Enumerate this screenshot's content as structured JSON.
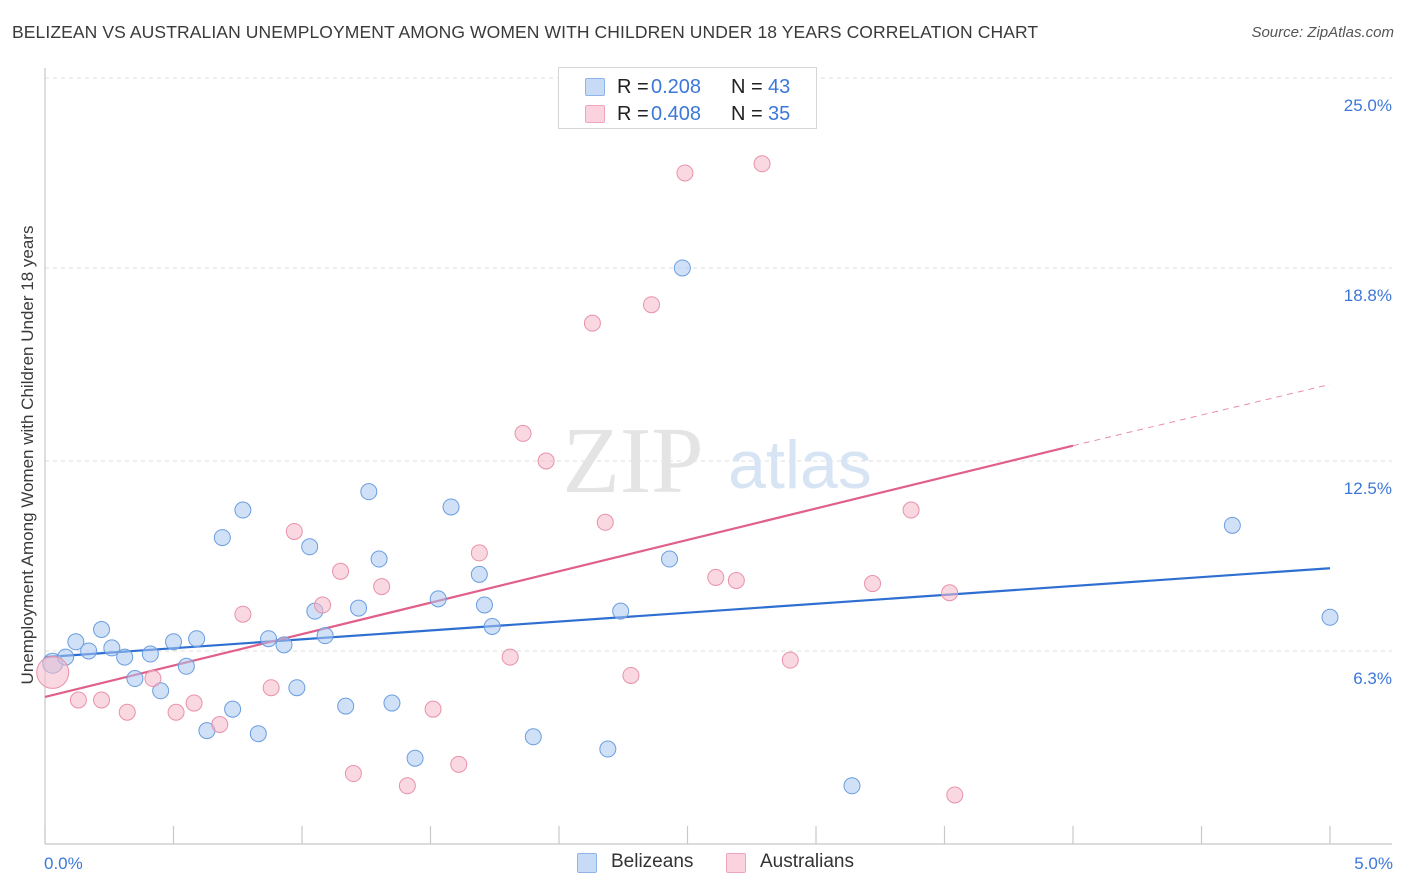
{
  "header": {
    "title": "BELIZEAN VS AUSTRALIAN UNEMPLOYMENT AMONG WOMEN WITH CHILDREN UNDER 18 YEARS CORRELATION CHART",
    "source": "Source: ZipAtlas.com"
  },
  "watermark": {
    "zip": "ZIP",
    "atlas": "atlas"
  },
  "legend_top": {
    "rows": [
      {
        "r_label": "R =",
        "r_value": "0.208",
        "n_label": "N =",
        "n_value": "43",
        "color": "#a9c7f0"
      },
      {
        "r_label": "R =",
        "r_value": "0.408",
        "n_label": "N =",
        "n_value": "35",
        "color": "#f5b8c8"
      }
    ]
  },
  "legend_bottom": {
    "items": [
      {
        "label": "Belizeans",
        "color": "#a9c7f0"
      },
      {
        "label": "Australians",
        "color": "#f5b8c8"
      }
    ]
  },
  "chart_data": {
    "type": "scatter",
    "title": "BELIZEAN VS AUSTRALIAN UNEMPLOYMENT AMONG WOMEN WITH CHILDREN UNDER 18 YEARS CORRELATION CHART",
    "xlabel": "",
    "ylabel": "Unemployment Among Women with Children Under 18 years",
    "xlim": [
      0,
      5
    ],
    "ylim": [
      0,
      25
    ],
    "x_tick_labels": [
      "0.0%",
      "5.0%"
    ],
    "y_ticks": [
      6.3,
      12.5,
      18.8,
      25.0
    ],
    "y_tick_labels": [
      "6.3%",
      "12.5%",
      "18.8%",
      "25.0%"
    ],
    "grid": true,
    "legend_placement": "top-center",
    "series": [
      {
        "name": "Belizeans",
        "color": "#a9c7f0",
        "stroke": "#6a9ee0",
        "trend": {
          "x0": 0.0,
          "y0": 6.1,
          "x1": 5.0,
          "y1": 9.0,
          "dashed_from": 5.0
        },
        "points": [
          [
            0.03,
            5.9
          ],
          [
            0.08,
            6.1
          ],
          [
            0.12,
            6.6
          ],
          [
            0.17,
            6.3
          ],
          [
            0.22,
            7.0
          ],
          [
            0.26,
            6.4
          ],
          [
            0.31,
            6.1
          ],
          [
            0.35,
            5.4
          ],
          [
            0.41,
            6.2
          ],
          [
            0.45,
            5.0
          ],
          [
            0.5,
            6.6
          ],
          [
            0.55,
            5.8
          ],
          [
            0.59,
            6.7
          ],
          [
            0.63,
            3.7
          ],
          [
            0.69,
            10.0
          ],
          [
            0.73,
            4.4
          ],
          [
            0.77,
            10.9
          ],
          [
            0.83,
            3.6
          ],
          [
            0.87,
            6.7
          ],
          [
            0.93,
            6.5
          ],
          [
            0.98,
            5.1
          ],
          [
            1.03,
            9.7
          ],
          [
            1.05,
            7.6
          ],
          [
            1.09,
            6.8
          ],
          [
            1.17,
            4.5
          ],
          [
            1.22,
            7.7
          ],
          [
            1.26,
            11.5
          ],
          [
            1.3,
            9.3
          ],
          [
            1.35,
            4.6
          ],
          [
            1.44,
            2.8
          ],
          [
            1.53,
            8.0
          ],
          [
            1.58,
            11.0
          ],
          [
            1.69,
            8.8
          ],
          [
            1.71,
            7.8
          ],
          [
            1.74,
            7.1
          ],
          [
            1.9,
            3.5
          ],
          [
            2.19,
            3.1
          ],
          [
            2.24,
            7.6
          ],
          [
            2.43,
            9.3
          ],
          [
            2.48,
            18.8
          ],
          [
            3.14,
            1.9
          ],
          [
            4.62,
            10.4
          ],
          [
            5.0,
            7.4
          ]
        ]
      },
      {
        "name": "Australians",
        "color": "#f5b8c8",
        "stroke": "#e892aa",
        "trend": {
          "x0": 0.0,
          "y0": 4.8,
          "x1": 4.0,
          "y1": 13.0,
          "dashed_from": 4.0,
          "dashed_to_x": 5.0,
          "dashed_to_y": 15.0
        },
        "points": [
          [
            0.03,
            5.6
          ],
          [
            0.13,
            4.7
          ],
          [
            0.22,
            4.7
          ],
          [
            0.32,
            4.3
          ],
          [
            0.42,
            5.4
          ],
          [
            0.51,
            4.3
          ],
          [
            0.58,
            4.6
          ],
          [
            0.68,
            3.9
          ],
          [
            0.77,
            7.5
          ],
          [
            0.88,
            5.1
          ],
          [
            0.97,
            10.2
          ],
          [
            1.08,
            7.8
          ],
          [
            1.15,
            8.9
          ],
          [
            1.2,
            2.3
          ],
          [
            1.31,
            8.4
          ],
          [
            1.41,
            1.9
          ],
          [
            1.51,
            4.4
          ],
          [
            1.61,
            2.6
          ],
          [
            1.69,
            9.5
          ],
          [
            1.81,
            6.1
          ],
          [
            1.86,
            13.4
          ],
          [
            1.95,
            12.5
          ],
          [
            2.13,
            17.0
          ],
          [
            2.18,
            10.5
          ],
          [
            2.28,
            5.5
          ],
          [
            2.36,
            17.6
          ],
          [
            2.49,
            21.9
          ],
          [
            2.61,
            8.7
          ],
          [
            2.69,
            8.6
          ],
          [
            2.79,
            22.2
          ],
          [
            2.9,
            6.0
          ],
          [
            3.22,
            8.5
          ],
          [
            3.37,
            10.9
          ],
          [
            3.54,
            1.6
          ],
          [
            3.52,
            8.2
          ]
        ]
      }
    ]
  }
}
